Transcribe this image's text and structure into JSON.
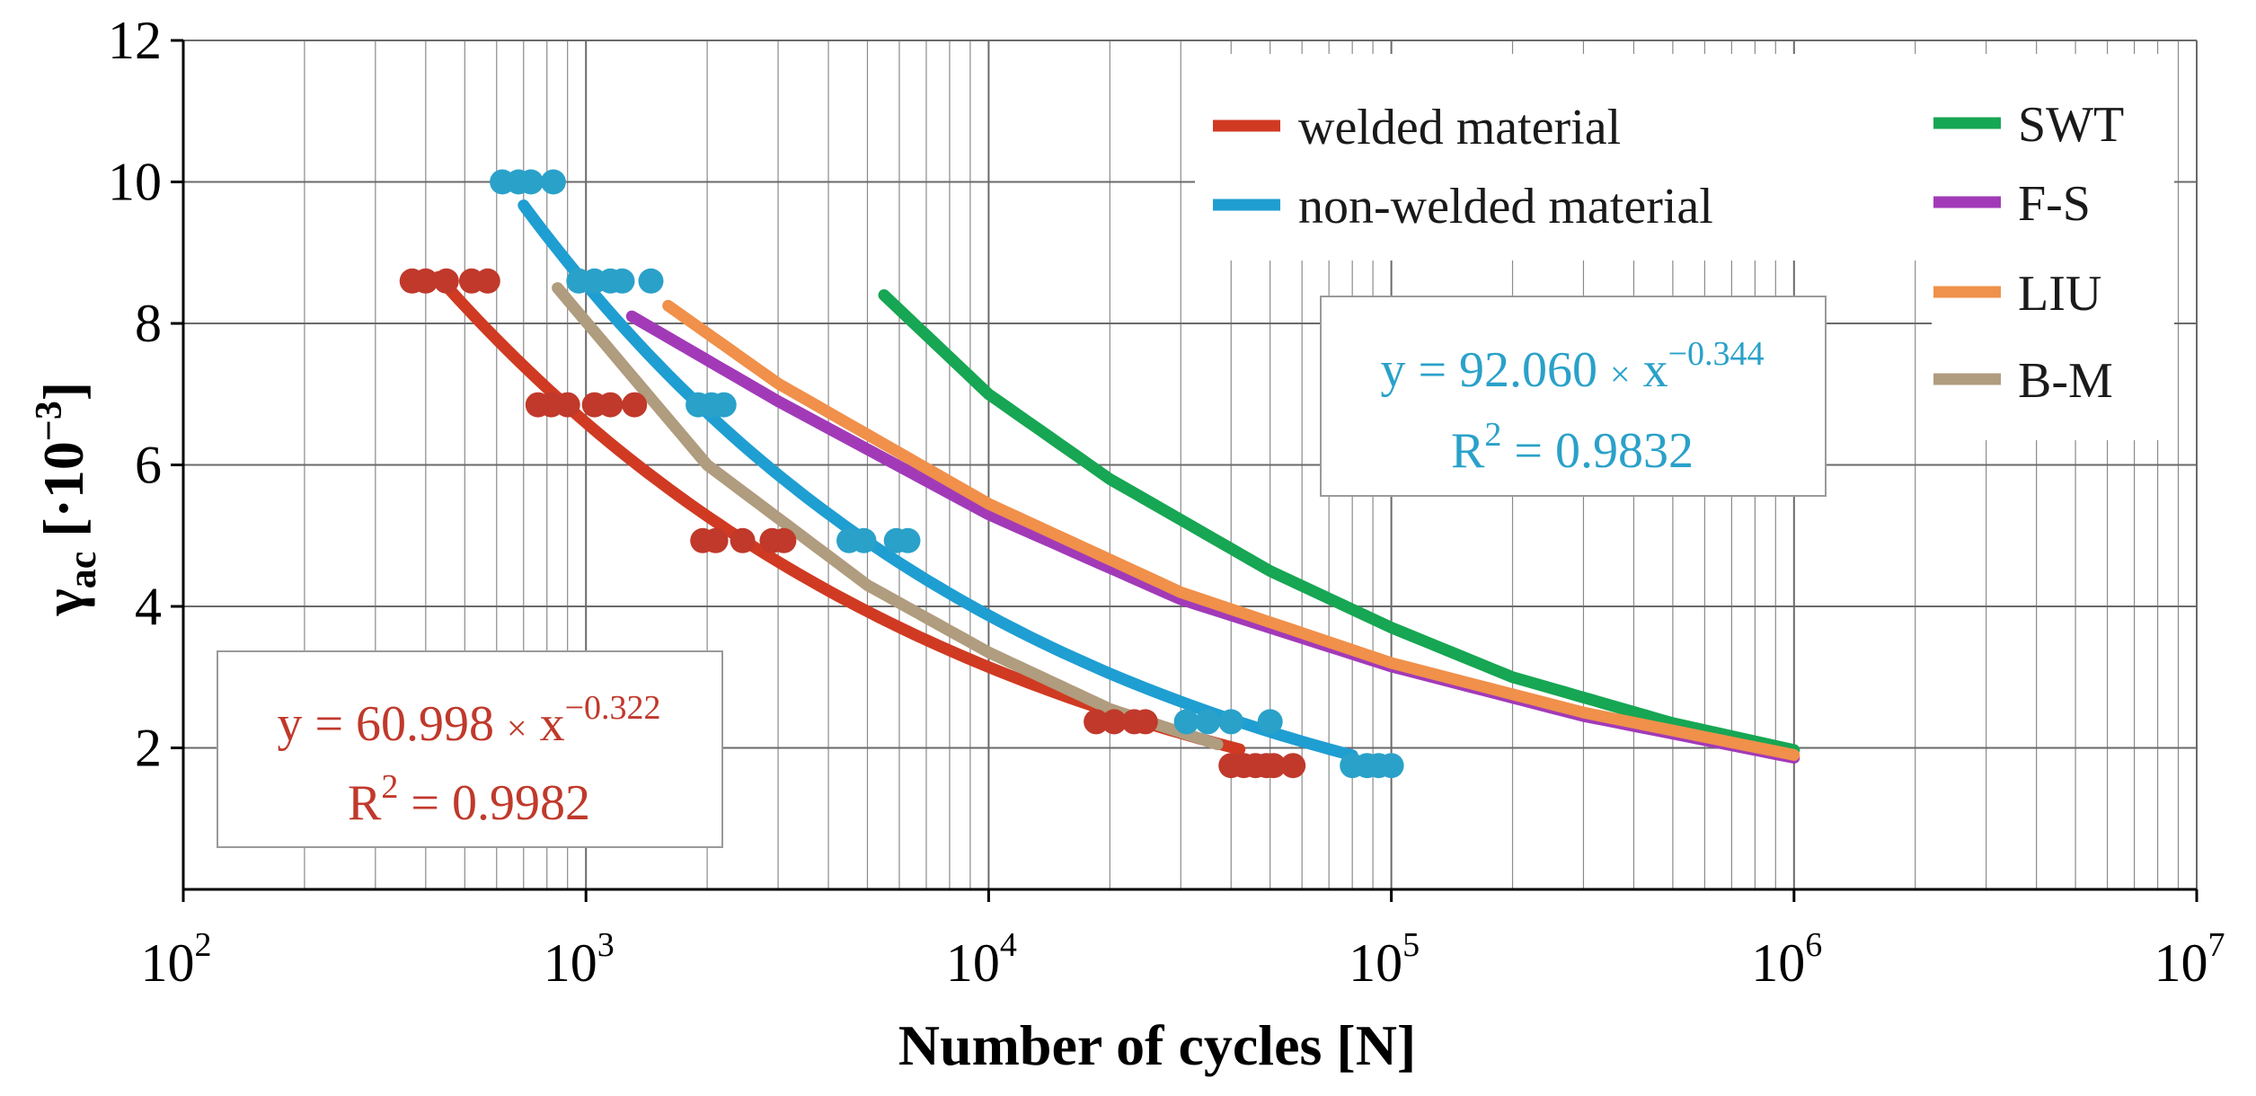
{
  "chart_data": {
    "type": "line",
    "title": "",
    "xlabel": "Number of cycles [N]",
    "ylabel": {
      "main": "γ",
      "sub": "ac",
      "unit_open": " [·10",
      "unit_exp": "−3",
      "unit_close": "]"
    },
    "xscale": "log",
    "xlim": [
      100,
      10000000
    ],
    "ylim": [
      0,
      12
    ],
    "xticks": [
      {
        "value": 100,
        "base": "10",
        "exp": "2"
      },
      {
        "value": 1000,
        "base": "10",
        "exp": "3"
      },
      {
        "value": 10000,
        "base": "10",
        "exp": "4"
      },
      {
        "value": 100000,
        "base": "10",
        "exp": "5"
      },
      {
        "value": 1000000,
        "base": "10",
        "exp": "6"
      },
      {
        "value": 10000000,
        "base": "10",
        "exp": "7"
      }
    ],
    "yticks": [
      {
        "value": 2,
        "label": "2"
      },
      {
        "value": 4,
        "label": "4"
      },
      {
        "value": 6,
        "label": "6"
      },
      {
        "value": 8,
        "label": "8"
      },
      {
        "value": 10,
        "label": "10"
      },
      {
        "value": 12,
        "label": "12"
      }
    ],
    "grid": true,
    "series": [
      {
        "name": "welded material",
        "kind": "fit",
        "color": "#d03a22",
        "coef": 60.998,
        "exponent": -0.322,
        "x_range": [
          430,
          42000
        ]
      },
      {
        "name": "non-welded material",
        "kind": "fit",
        "color": "#1f9ed2",
        "coef": 92.06,
        "exponent": -0.344,
        "x_range": [
          700,
          80000
        ]
      },
      {
        "name": "SWT",
        "kind": "model",
        "color": "#17a653",
        "x": [
          5500,
          10000,
          20000,
          50000,
          100000,
          200000,
          500000,
          1000000
        ],
        "y": [
          8.4,
          7.0,
          5.8,
          4.5,
          3.7,
          3.0,
          2.35,
          1.97
        ]
      },
      {
        "name": "F-S",
        "kind": "model",
        "color": "#a23ab8",
        "x": [
          1300,
          3000,
          10000,
          30000,
          100000,
          300000,
          1000000
        ],
        "y": [
          8.1,
          6.9,
          5.3,
          4.1,
          3.15,
          2.45,
          1.86
        ]
      },
      {
        "name": "LIU",
        "kind": "model",
        "color": "#f0904a",
        "x": [
          1600,
          3000,
          10000,
          30000,
          100000,
          300000,
          1000000
        ],
        "y": [
          8.25,
          7.15,
          5.45,
          4.2,
          3.2,
          2.5,
          1.9
        ]
      },
      {
        "name": "B-M",
        "kind": "model",
        "color": "#b09c7e",
        "x": [
          850,
          2000,
          5000,
          10000,
          20000,
          37000
        ],
        "y": [
          8.5,
          6.0,
          4.3,
          3.35,
          2.55,
          2.05
        ]
      }
    ],
    "points": [
      {
        "series": "welded material",
        "color": "#c0392b",
        "strain": 8.6,
        "cycles": [
          370,
          400,
          450,
          520,
          570
        ]
      },
      {
        "series": "welded material",
        "strain": 6.85,
        "cycles": [
          760,
          820,
          900,
          1050,
          1150,
          1320
        ]
      },
      {
        "series": "welded material",
        "strain": 4.93,
        "cycles": [
          1950,
          2100,
          2450,
          2900,
          3100
        ]
      },
      {
        "series": "welded material",
        "strain": 2.37,
        "cycles": [
          18500,
          20500,
          23000,
          24500
        ]
      },
      {
        "series": "welded material",
        "strain": 1.75,
        "cycles": [
          40000,
          43000,
          46000,
          49000,
          51000,
          57000
        ]
      },
      {
        "series": "non-welded material",
        "color": "#2aa1c9",
        "strain": 10.0,
        "cycles": [
          620,
          680,
          730,
          830
        ]
      },
      {
        "series": "non-welded material",
        "strain": 8.6,
        "cycles": [
          960,
          1050,
          1150,
          1230,
          1450
        ]
      },
      {
        "series": "non-welded material",
        "strain": 6.85,
        "cycles": [
          1900,
          2050,
          2200
        ]
      },
      {
        "series": "non-welded material",
        "strain": 4.93,
        "cycles": [
          4500,
          4900,
          5900,
          6300
        ]
      },
      {
        "series": "non-welded material",
        "strain": 2.37,
        "cycles": [
          31000,
          35000,
          40000,
          50000
        ]
      },
      {
        "series": "non-welded material",
        "strain": 1.75,
        "cycles": [
          80000,
          87000,
          93000,
          100000
        ]
      }
    ],
    "equations": [
      {
        "series": "welded material",
        "color": "#c0392b",
        "text_main": "y = 60.998 ",
        "times": "×",
        "text_x": " x",
        "exp": "−0.322",
        "r2_label": "R",
        "r2_exp": "2",
        "r2_value": " = 0.9982"
      },
      {
        "series": "non-welded material",
        "color": "#2aa1c9",
        "text_main": "y = 92.060 ",
        "times": "×",
        "text_x": " x",
        "exp": "−0.344",
        "r2_label": "R",
        "r2_exp": "2",
        "r2_value": " = 0.9832"
      }
    ]
  }
}
